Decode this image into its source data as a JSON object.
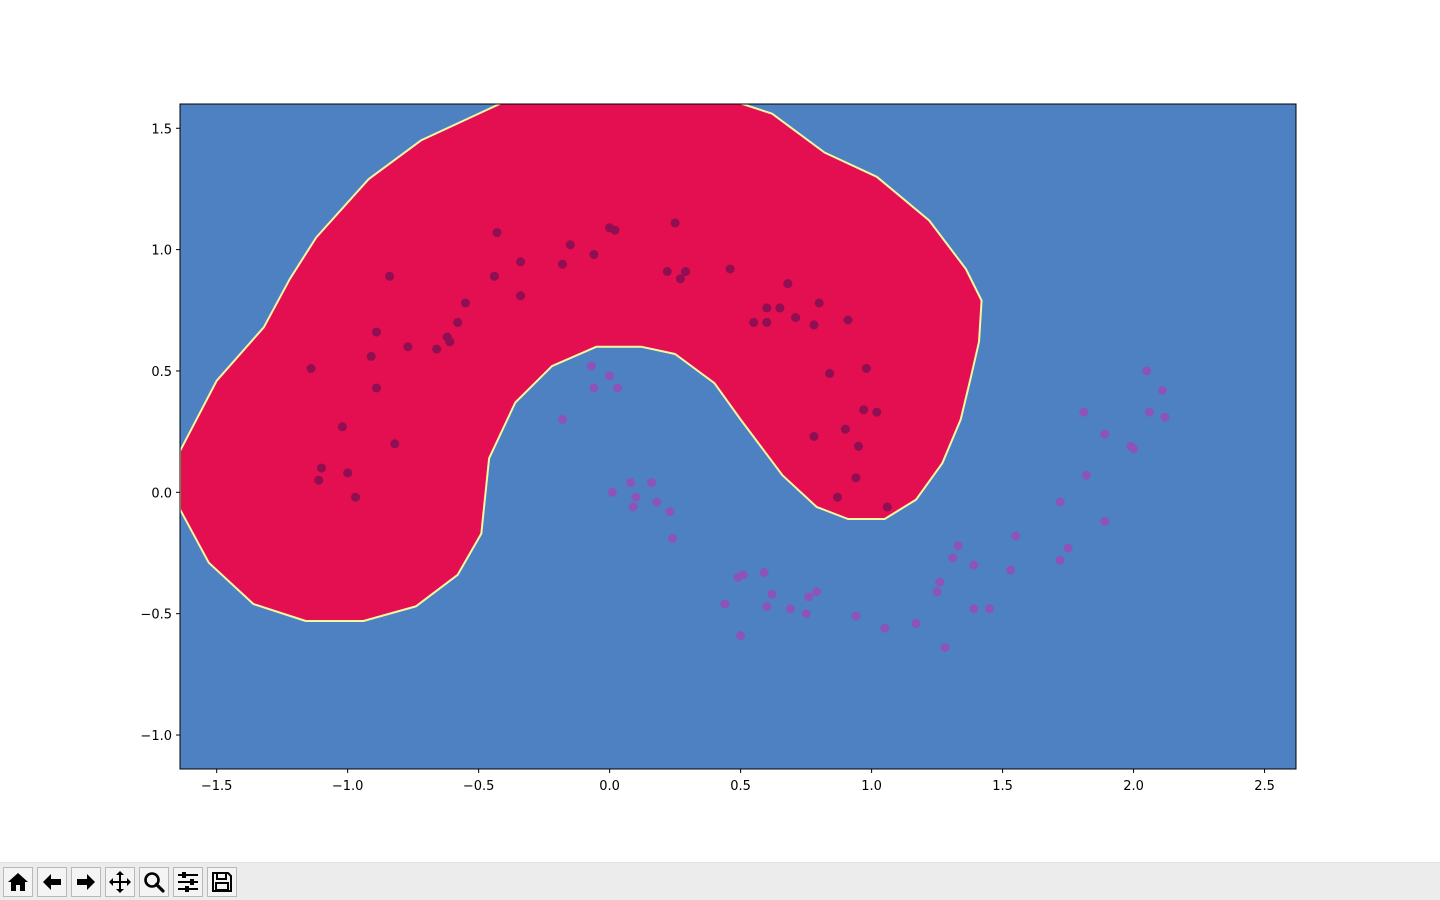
{
  "chart_data": {
    "type": "scatter",
    "title": "",
    "xlabel": "",
    "ylabel": "",
    "xlim": [
      -1.64,
      2.62
    ],
    "ylim": [
      -1.14,
      1.6
    ],
    "xticks": [
      -1.5,
      -1.0,
      -0.5,
      0.0,
      0.5,
      1.0,
      1.5,
      2.0,
      2.5
    ],
    "xtick_labels": [
      "−1.5",
      "−1.0",
      "−0.5",
      "0.0",
      "0.5",
      "1.0",
      "1.5",
      "2.0",
      "2.5"
    ],
    "yticks": [
      -1.0,
      -0.5,
      0.0,
      0.5,
      1.0,
      1.5
    ],
    "ytick_labels": [
      "−1.0",
      "−0.5",
      "0.0",
      "0.5",
      "1.0",
      "1.5"
    ],
    "grid": false,
    "background_color": "#4e81c1",
    "region_color": "#e30f51",
    "boundary_color": "#f4f7a5",
    "decision_region": {
      "class": 0,
      "boundary": [
        [
          -1.64,
          0.17
        ],
        [
          -1.5,
          0.46
        ],
        [
          -1.32,
          0.68
        ],
        [
          -1.22,
          0.88
        ],
        [
          -1.12,
          1.05
        ],
        [
          -0.92,
          1.29
        ],
        [
          -0.72,
          1.45
        ],
        [
          -0.52,
          1.55
        ],
        [
          -0.38,
          1.62
        ],
        [
          0.45,
          1.62
        ],
        [
          0.62,
          1.56
        ],
        [
          0.82,
          1.4
        ],
        [
          1.02,
          1.3
        ],
        [
          1.22,
          1.12
        ],
        [
          1.36,
          0.92
        ],
        [
          1.42,
          0.79
        ],
        [
          1.41,
          0.62
        ],
        [
          1.38,
          0.48
        ],
        [
          1.34,
          0.3
        ],
        [
          1.27,
          0.12
        ],
        [
          1.17,
          -0.03
        ],
        [
          1.05,
          -0.11
        ],
        [
          0.91,
          -0.11
        ],
        [
          0.79,
          -0.06
        ],
        [
          0.66,
          0.07
        ],
        [
          0.5,
          0.3
        ],
        [
          0.4,
          0.45
        ],
        [
          0.25,
          0.57
        ],
        [
          0.12,
          0.6
        ],
        [
          -0.05,
          0.6
        ],
        [
          -0.22,
          0.52
        ],
        [
          -0.36,
          0.37
        ],
        [
          -0.46,
          0.14
        ],
        [
          -0.49,
          -0.17
        ],
        [
          -0.58,
          -0.34
        ],
        [
          -0.74,
          -0.47
        ],
        [
          -0.94,
          -0.53
        ],
        [
          -1.16,
          -0.53
        ],
        [
          -1.36,
          -0.46
        ],
        [
          -1.53,
          -0.29
        ],
        [
          -1.64,
          -0.07
        ]
      ]
    },
    "series": [
      {
        "class": 0,
        "color": "#8e0f52",
        "points": [
          [
            -1.14,
            0.51
          ],
          [
            -1.02,
            0.27
          ],
          [
            -1.11,
            0.05
          ],
          [
            -1.1,
            0.1
          ],
          [
            -1.0,
            0.08
          ],
          [
            -0.97,
            -0.02
          ],
          [
            -0.91,
            0.56
          ],
          [
            -0.89,
            0.66
          ],
          [
            -0.89,
            0.43
          ],
          [
            -0.84,
            0.89
          ],
          [
            -0.82,
            0.2
          ],
          [
            -0.77,
            0.6
          ],
          [
            -0.66,
            0.59
          ],
          [
            -0.62,
            0.64
          ],
          [
            -0.61,
            0.62
          ],
          [
            -0.58,
            0.7
          ],
          [
            -0.55,
            0.78
          ],
          [
            -0.44,
            0.89
          ],
          [
            -0.43,
            1.07
          ],
          [
            -0.34,
            0.95
          ],
          [
            -0.34,
            0.81
          ],
          [
            -0.18,
            0.94
          ],
          [
            -0.15,
            1.02
          ],
          [
            -0.06,
            0.98
          ],
          [
            0.0,
            1.09
          ],
          [
            0.02,
            1.08
          ],
          [
            0.22,
            0.91
          ],
          [
            0.25,
            1.11
          ],
          [
            0.27,
            0.88
          ],
          [
            0.29,
            0.91
          ],
          [
            0.46,
            0.92
          ],
          [
            0.55,
            0.7
          ],
          [
            0.6,
            0.76
          ],
          [
            0.6,
            0.7
          ],
          [
            0.65,
            0.76
          ],
          [
            0.68,
            0.86
          ],
          [
            0.71,
            0.72
          ],
          [
            0.78,
            0.69
          ],
          [
            0.78,
            0.23
          ],
          [
            0.8,
            0.78
          ],
          [
            0.84,
            0.49
          ],
          [
            0.87,
            -0.02
          ],
          [
            0.9,
            0.26
          ],
          [
            0.91,
            0.71
          ],
          [
            0.94,
            0.06
          ],
          [
            0.95,
            0.19
          ],
          [
            0.97,
            0.34
          ],
          [
            0.98,
            0.51
          ],
          [
            1.02,
            0.33
          ],
          [
            1.06,
            -0.06
          ]
        ]
      },
      {
        "class": 1,
        "color": "#8c54ba",
        "points": [
          [
            -0.18,
            0.3
          ],
          [
            -0.07,
            0.52
          ],
          [
            -0.06,
            0.43
          ],
          [
            0.0,
            0.48
          ],
          [
            0.03,
            0.43
          ],
          [
            0.01,
            0.0
          ],
          [
            0.08,
            0.04
          ],
          [
            0.09,
            -0.06
          ],
          [
            0.1,
            -0.02
          ],
          [
            0.16,
            0.04
          ],
          [
            0.18,
            -0.04
          ],
          [
            0.23,
            -0.08
          ],
          [
            0.24,
            -0.19
          ],
          [
            0.44,
            -0.46
          ],
          [
            0.49,
            -0.35
          ],
          [
            0.5,
            -0.59
          ],
          [
            0.51,
            -0.34
          ],
          [
            0.59,
            -0.33
          ],
          [
            0.6,
            -0.47
          ],
          [
            0.62,
            -0.42
          ],
          [
            0.69,
            -0.48
          ],
          [
            0.75,
            -0.5
          ],
          [
            0.76,
            -0.43
          ],
          [
            0.79,
            -0.41
          ],
          [
            0.94,
            -0.51
          ],
          [
            1.05,
            -0.56
          ],
          [
            1.17,
            -0.54
          ],
          [
            1.25,
            -0.41
          ],
          [
            1.26,
            -0.37
          ],
          [
            1.28,
            -0.64
          ],
          [
            1.31,
            -0.27
          ],
          [
            1.33,
            -0.22
          ],
          [
            1.39,
            -0.3
          ],
          [
            1.39,
            -0.48
          ],
          [
            1.45,
            -0.48
          ],
          [
            1.53,
            -0.32
          ],
          [
            1.55,
            -0.18
          ],
          [
            1.72,
            -0.04
          ],
          [
            1.72,
            -0.28
          ],
          [
            1.75,
            -0.23
          ],
          [
            1.81,
            0.33
          ],
          [
            1.82,
            0.07
          ],
          [
            1.89,
            0.24
          ],
          [
            1.89,
            -0.12
          ],
          [
            1.99,
            0.19
          ],
          [
            2.0,
            0.18
          ],
          [
            2.05,
            0.5
          ],
          [
            2.06,
            0.33
          ],
          [
            2.11,
            0.42
          ],
          [
            2.12,
            0.31
          ]
        ]
      }
    ]
  },
  "toolbar": {
    "buttons": [
      {
        "name": "home-button",
        "icon": "home-icon"
      },
      {
        "name": "back-button",
        "icon": "arrow-left-icon"
      },
      {
        "name": "forward-button",
        "icon": "arrow-right-icon"
      },
      {
        "name": "pan-button",
        "icon": "move-icon"
      },
      {
        "name": "zoom-button",
        "icon": "magnifier-icon"
      },
      {
        "name": "configure-subplots-button",
        "icon": "sliders-icon"
      },
      {
        "name": "save-button",
        "icon": "floppy-disk-icon"
      }
    ]
  }
}
